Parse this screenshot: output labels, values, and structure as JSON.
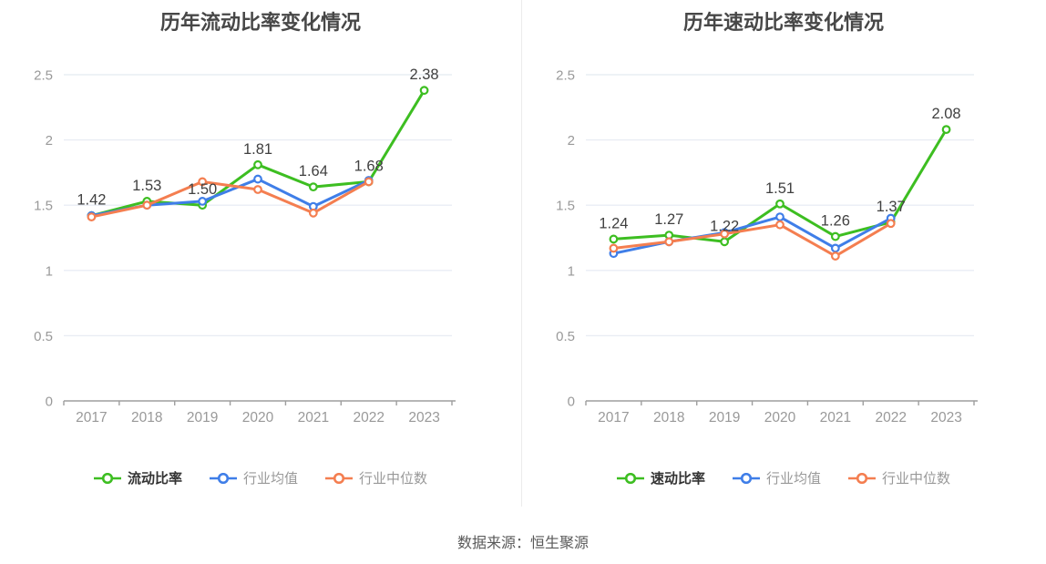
{
  "page": {
    "source_note": "数据来源：恒生聚源"
  },
  "colors": {
    "background": "#ffffff",
    "grid": "#e9edf4",
    "axis_line": "#9e9e9e",
    "tick_label": "#999999",
    "value_label": "#404040",
    "title_text": "#474747",
    "legend_main_text": "#333333",
    "legend_muted_text": "#999999",
    "divider": "#ebebeb",
    "source_text": "#595959",
    "series_main": "#3dbe21",
    "series_avg": "#3f7ee8",
    "series_median": "#f47e50"
  },
  "chart_data": [
    {
      "type": "line",
      "title": "历年流动比率变化情况",
      "x": [
        "2017",
        "2018",
        "2019",
        "2020",
        "2021",
        "2022",
        "2023"
      ],
      "ylim": [
        0,
        2.5
      ],
      "yticks": [
        0,
        0.5,
        1,
        1.5,
        2,
        2.5
      ],
      "grid": true,
      "legend_position": "bottom",
      "series": [
        {
          "name": "流动比率",
          "color": "#3dbe21",
          "values": [
            1.42,
            1.53,
            1.5,
            1.81,
            1.64,
            1.68,
            2.38
          ],
          "show_labels": true
        },
        {
          "name": "行业均值",
          "color": "#3f7ee8",
          "values": [
            1.42,
            1.5,
            1.53,
            1.7,
            1.49,
            1.69,
            null
          ]
        },
        {
          "name": "行业中位数",
          "color": "#f47e50",
          "values": [
            1.41,
            1.5,
            1.68,
            1.62,
            1.44,
            1.68,
            null
          ]
        }
      ],
      "point_labels": [
        "1.42",
        "1.53",
        "1.50",
        "1.81",
        "1.64",
        "1.68",
        "2.38"
      ]
    },
    {
      "type": "line",
      "title": "历年速动比率变化情况",
      "x": [
        "2017",
        "2018",
        "2019",
        "2020",
        "2021",
        "2022",
        "2023"
      ],
      "ylim": [
        0,
        2.5
      ],
      "yticks": [
        0,
        0.5,
        1,
        1.5,
        2,
        2.5
      ],
      "grid": true,
      "legend_position": "bottom",
      "series": [
        {
          "name": "速动比率",
          "color": "#3dbe21",
          "values": [
            1.24,
            1.27,
            1.22,
            1.51,
            1.26,
            1.37,
            2.08
          ],
          "show_labels": true
        },
        {
          "name": "行业均值",
          "color": "#3f7ee8",
          "values": [
            1.13,
            1.22,
            1.29,
            1.41,
            1.17,
            1.4,
            null
          ]
        },
        {
          "name": "行业中位数",
          "color": "#f47e50",
          "values": [
            1.17,
            1.22,
            1.28,
            1.35,
            1.11,
            1.36,
            null
          ]
        }
      ],
      "point_labels": [
        "1.24",
        "1.27",
        "1.22",
        "1.51",
        "1.26",
        "1.37",
        "2.08"
      ]
    }
  ]
}
